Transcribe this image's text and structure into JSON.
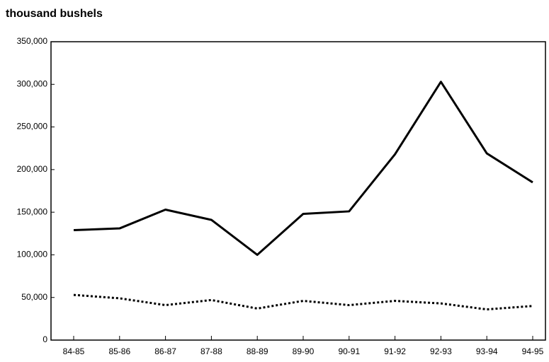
{
  "chart_data": {
    "type": "line",
    "ylabel": "thousand bushels",
    "categories": [
      "84-85",
      "85-86",
      "86-87",
      "87-88",
      "88-89",
      "89-90",
      "90-91",
      "91-92",
      "92-93",
      "93-94",
      "94-95"
    ],
    "series": [
      {
        "color": "#000000",
        "style": "solid",
        "values": [
          129000,
          131000,
          153000,
          141000,
          100000,
          148000,
          151000,
          218000,
          303000,
          219000,
          185000
        ]
      },
      {
        "color": "#000000",
        "style": "dotted",
        "values": [
          53000,
          49000,
          41000,
          47000,
          37000,
          46000,
          41000,
          46000,
          43000,
          36000,
          40000
        ]
      }
    ],
    "ylim": [
      0,
      350000
    ],
    "yticks": [
      0,
      {
        "value": 50000,
        "label": "50,000"
      },
      {
        "value": 100000,
        "label": "100,000"
      },
      {
        "value": 150000,
        "label": "150,000"
      },
      {
        "value": 200000,
        "label": "200,000"
      },
      {
        "value": 250000,
        "label": "250,000"
      },
      {
        "value": 300000,
        "label": "300,000"
      },
      {
        "value": 350000,
        "label": "350,000"
      }
    ],
    "grid": false
  }
}
